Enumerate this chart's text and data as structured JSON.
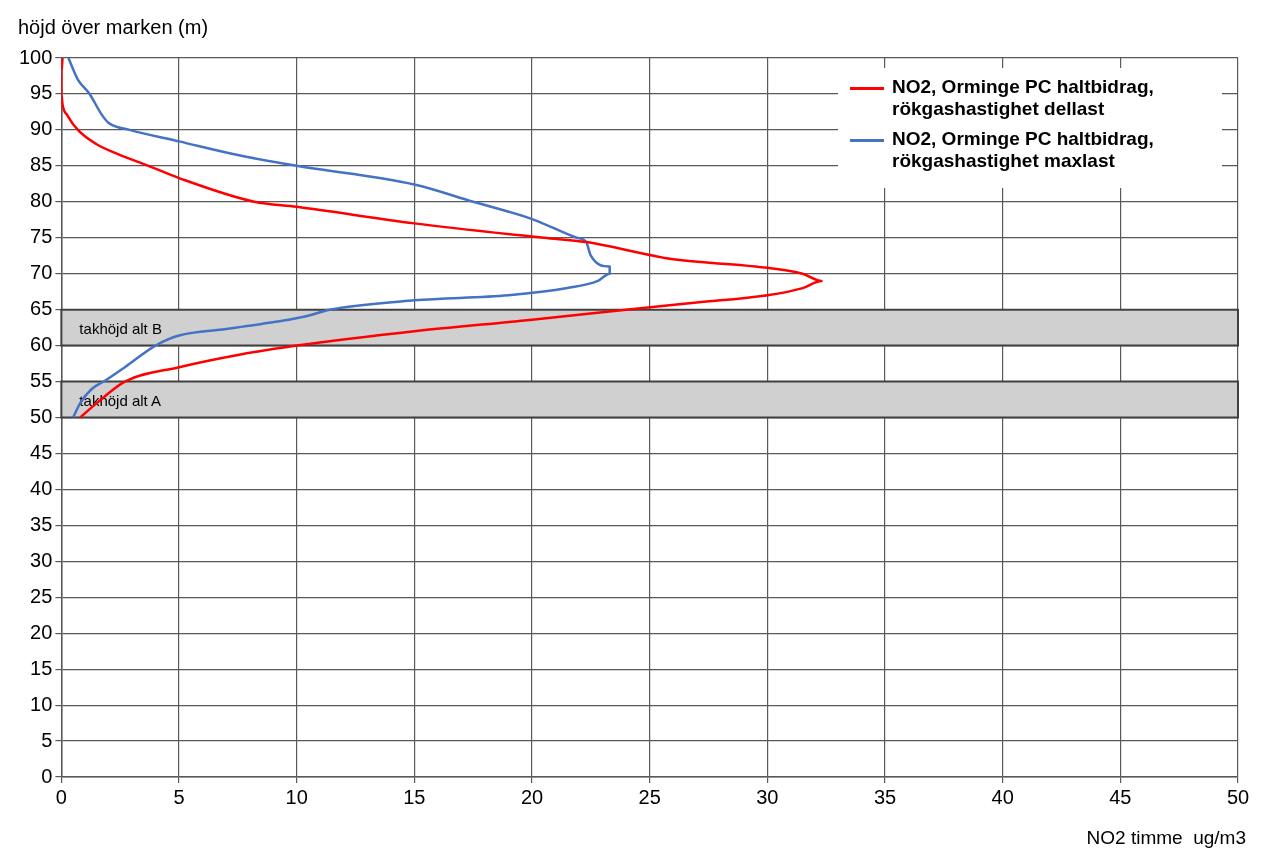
{
  "chart_data": {
    "type": "line",
    "ylabel": "höjd över marken (m)",
    "xlabel": "NO2 timme  ug/m3",
    "xlim": [
      0,
      50
    ],
    "xticks": [
      0,
      5,
      10,
      15,
      20,
      25,
      30,
      35,
      40,
      45,
      50
    ],
    "ylim": [
      0,
      100
    ],
    "yticks": [
      0,
      5,
      10,
      15,
      20,
      25,
      30,
      35,
      40,
      45,
      50,
      55,
      60,
      65,
      70,
      75,
      80,
      85,
      90,
      95,
      100
    ],
    "grid": true,
    "legend": "top right",
    "marker": "none",
    "line_style": "solid",
    "bands": [
      {
        "axis": "y",
        "from": 60,
        "to": 65,
        "label": "takhöjd alt B",
        "color": "#d0d0d0"
      },
      {
        "axis": "y",
        "from": 50,
        "to": 55,
        "label": "takhöjd alt A",
        "color": "#d0d0d0"
      }
    ],
    "series": [
      {
        "name": "NO2, Orminge PC haltbidrag, rökgashastighet dellast",
        "color": "#ff0000",
        "x": [
          0.8,
          1.5,
          2.7,
          5,
          7.5,
          10,
          15,
          20,
          24,
          27,
          30,
          31.5,
          32.3,
          31.5,
          29.5,
          26,
          22.3,
          20.5,
          15,
          10,
          8.2,
          5,
          3.7,
          2.5,
          1.5,
          0.7,
          0.26,
          0.05,
          0,
          0,
          0.05
        ],
        "values": [
          50,
          52,
          55,
          57,
          58.7,
          60,
          62,
          63.6,
          65,
          66,
          67,
          68,
          69,
          70,
          71,
          72,
          74.4,
          75,
          77,
          79.3,
          80,
          83.3,
          85,
          86.5,
          88,
          90,
          92,
          93.5,
          95,
          98,
          100
        ]
      },
      {
        "name": "NO2, Orminge PC haltbidrag, rökgashastighet maxlast",
        "color": "#4472c4",
        "x": [
          0.5,
          0.8,
          1.3,
          1.8,
          2.7,
          4,
          5,
          7,
          8.5,
          10.3,
          11.4,
          15,
          19,
          21.5,
          22.8,
          23.3,
          23.3,
          22.5,
          22.3,
          21.9,
          20,
          17.5,
          15,
          10,
          7.5,
          5,
          2.9,
          2,
          1.7,
          1.2,
          0.7,
          0.3
        ],
        "values": [
          50,
          52,
          54,
          55,
          57,
          60,
          61.4,
          62.3,
          63,
          64,
          65,
          66.3,
          67,
          68,
          69,
          70,
          71,
          72.5,
          74.4,
          75,
          77.6,
          80,
          82.4,
          85,
          86.5,
          88.4,
          90,
          91,
          92.2,
          95,
          97,
          100
        ]
      }
    ]
  }
}
